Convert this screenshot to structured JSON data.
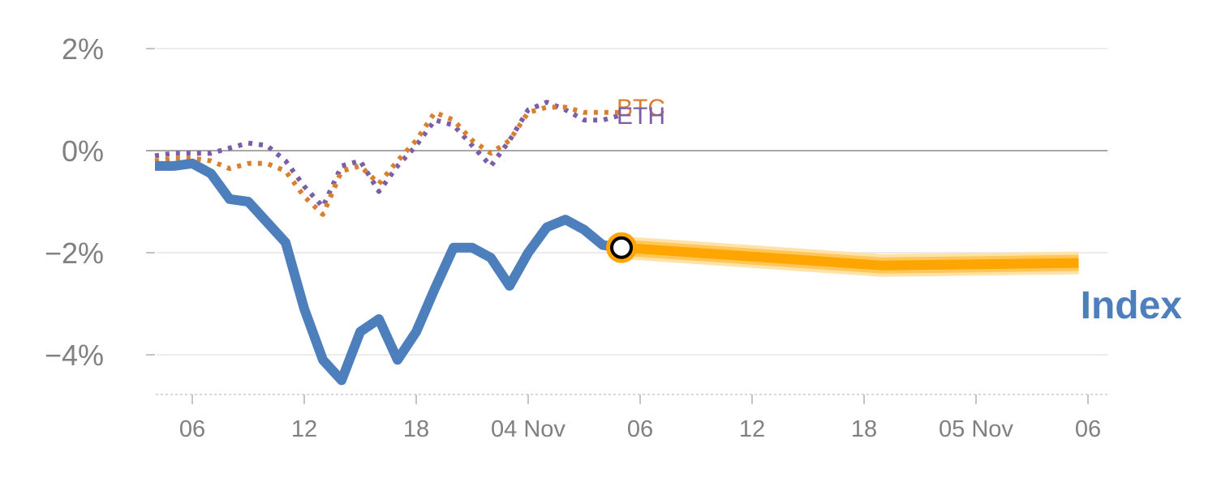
{
  "chart_data": {
    "type": "line",
    "title": "",
    "xlabel": "",
    "ylabel": "",
    "y_ticks": [
      "2%",
      "0%",
      "−2%",
      "−4%"
    ],
    "y_tick_values": [
      2,
      0,
      -2,
      -4
    ],
    "x_tick_labels": [
      "06",
      "12",
      "18",
      "04 Nov",
      "06",
      "12",
      "18",
      "05 Nov",
      "06"
    ],
    "ylim": [
      -4.8,
      2.0
    ],
    "grid": true,
    "x_axis_note": "hourly ticks; BTC/ETH/Index history runs from ~05h on 04 Nov to ~05h on 05 Nov, forecast continues to ~05h on 06 Nov",
    "series": [
      {
        "name": "ETH",
        "style": "dotted",
        "color": "#7b5ea7",
        "x": [
          -1,
          0,
          1,
          2,
          3,
          4,
          5,
          6,
          7,
          8,
          9,
          10,
          11,
          12,
          13,
          14,
          15,
          16,
          17,
          18,
          19,
          20,
          21,
          22,
          23,
          24
        ],
        "values": [
          -0.1,
          -0.05,
          -0.05,
          -0.05,
          0.05,
          0.15,
          0.1,
          -0.2,
          -0.7,
          -1.1,
          -0.3,
          -0.2,
          -0.8,
          -0.3,
          0.1,
          0.6,
          0.5,
          0.1,
          -0.3,
          0.2,
          0.8,
          0.95,
          0.8,
          0.6,
          0.6,
          0.7
        ]
      },
      {
        "name": "BTC",
        "style": "dotted",
        "color": "#d97f30",
        "x": [
          -1,
          0,
          1,
          2,
          3,
          4,
          5,
          6,
          7,
          8,
          9,
          10,
          11,
          12,
          13,
          14,
          15,
          16,
          17,
          18,
          19,
          20,
          21,
          22,
          23,
          24
        ],
        "values": [
          -0.2,
          -0.15,
          -0.15,
          -0.2,
          -0.35,
          -0.25,
          -0.25,
          -0.4,
          -0.9,
          -1.25,
          -0.4,
          -0.3,
          -0.65,
          -0.2,
          0.2,
          0.75,
          0.6,
          0.2,
          -0.05,
          0.2,
          0.75,
          0.85,
          0.85,
          0.75,
          0.75,
          0.75
        ]
      },
      {
        "name": "Index",
        "style": "solid",
        "color": "#4e7fbd",
        "x": [
          -1,
          0,
          1,
          2,
          3,
          4,
          5,
          6,
          7,
          8,
          9,
          10,
          11,
          12,
          13,
          14,
          15,
          16,
          17,
          18,
          19,
          20,
          21,
          22,
          23,
          24
        ],
        "values": [
          -0.3,
          -0.3,
          -0.25,
          -0.45,
          -0.95,
          -1.0,
          -1.4,
          -1.8,
          -3.1,
          -4.1,
          -4.5,
          -3.55,
          -3.3,
          -4.1,
          -3.55,
          -2.7,
          -1.9,
          -1.9,
          -2.1,
          -2.65,
          -2.0,
          -1.5,
          -1.35,
          -1.55,
          -1.85,
          -1.9
        ]
      },
      {
        "name": "Index forecast",
        "style": "thick-band",
        "color": "#ffa500",
        "x": [
          24,
          38,
          48.5
        ],
        "values": [
          -1.9,
          -2.25,
          -2.2
        ]
      }
    ],
    "marker": {
      "x": 24,
      "value": -1.9,
      "fill": "#ffffff",
      "stroke": "#000000",
      "ring": "#ffa500"
    },
    "labels": {
      "btc": "BTC",
      "eth": "ETH",
      "index": "Index"
    }
  }
}
